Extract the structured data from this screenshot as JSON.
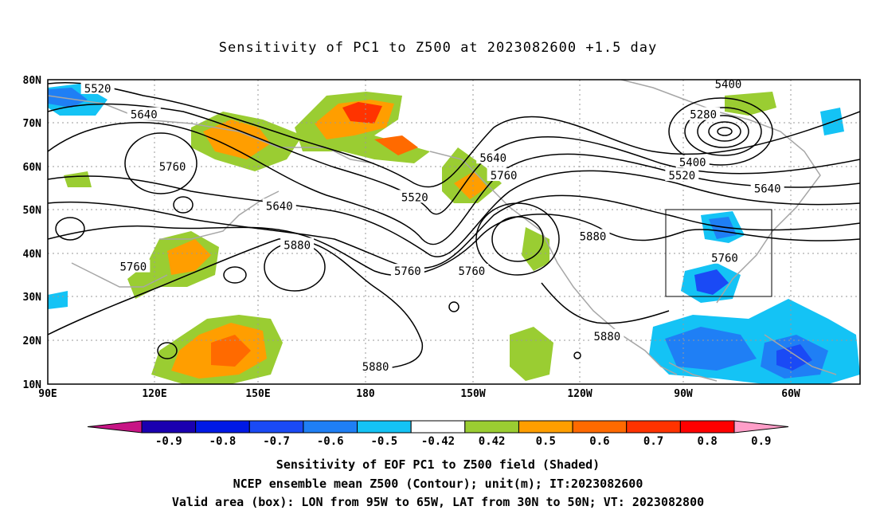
{
  "title": "Sensitivity of PC1 to Z500 at 2023082600 +1.5 day",
  "map": {
    "lon_labels": [
      "90E",
      "120E",
      "150E",
      "180",
      "150W",
      "120W",
      "90W",
      "60W"
    ],
    "lat_labels": [
      "80N",
      "70N",
      "60N",
      "50N",
      "40N",
      "30N",
      "20N",
      "10N"
    ],
    "extent": {
      "lon_min": 90,
      "lon_max": 318,
      "lat_min": 10,
      "lat_max": 80
    },
    "valid_box": {
      "lon_min": 265,
      "lon_max": 295,
      "lat_min": 30,
      "lat_max": 50
    },
    "contour_labels": [
      {
        "text": "5520",
        "lon": 104,
        "lat": 78
      },
      {
        "text": "5640",
        "lon": 117,
        "lat": 72
      },
      {
        "text": "5760",
        "lon": 125,
        "lat": 60
      },
      {
        "text": "5640",
        "lon": 155,
        "lat": 51
      },
      {
        "text": "5880",
        "lon": 160,
        "lat": 42
      },
      {
        "text": "5760",
        "lon": 114,
        "lat": 37
      },
      {
        "text": "5880",
        "lon": 182,
        "lat": 14
      },
      {
        "text": "5760",
        "lon": 191,
        "lat": 36
      },
      {
        "text": "5520",
        "lon": 193,
        "lat": 53
      },
      {
        "text": "5640",
        "lon": 215,
        "lat": 62
      },
      {
        "text": "5760",
        "lon": 218,
        "lat": 58
      },
      {
        "text": "5760",
        "lon": 209,
        "lat": 36
      },
      {
        "text": "5880",
        "lon": 243,
        "lat": 44
      },
      {
        "text": "5880",
        "lon": 247,
        "lat": 21
      },
      {
        "text": "5400",
        "lon": 281,
        "lat": 79
      },
      {
        "text": "5280",
        "lon": 274,
        "lat": 72
      },
      {
        "text": "5400",
        "lon": 271,
        "lat": 61
      },
      {
        "text": "5520",
        "lon": 268,
        "lat": 58
      },
      {
        "text": "5640",
        "lon": 292,
        "lat": 55
      },
      {
        "text": "5760",
        "lon": 280,
        "lat": 39
      }
    ]
  },
  "colorbar": {
    "labels": [
      "-0.9",
      "-0.8",
      "-0.7",
      "-0.6",
      "-0.5",
      "-0.42",
      "0.42",
      "0.5",
      "0.6",
      "0.7",
      "0.8",
      "0.9"
    ],
    "colors": [
      "#1a00b0",
      "#0019e6",
      "#1a4af5",
      "#1f7ff5",
      "#14c3f5",
      "#ffffff",
      "#9acd32",
      "#ff9e00",
      "#ff6a00",
      "#ff3300",
      "#ff0000"
    ],
    "low_end_color": "#c71585",
    "high_end_color": "#ff9ec8"
  },
  "footer": {
    "line1": "Sensitivity of EOF PC1 to Z500 field (Shaded)",
    "line2": "NCEP ensemble mean Z500 (Contour); unit(m); IT:2023082600",
    "line3": "Valid area (box): LON from 95W to 65W, LAT from 30N to 50N; VT: 2023082800"
  }
}
